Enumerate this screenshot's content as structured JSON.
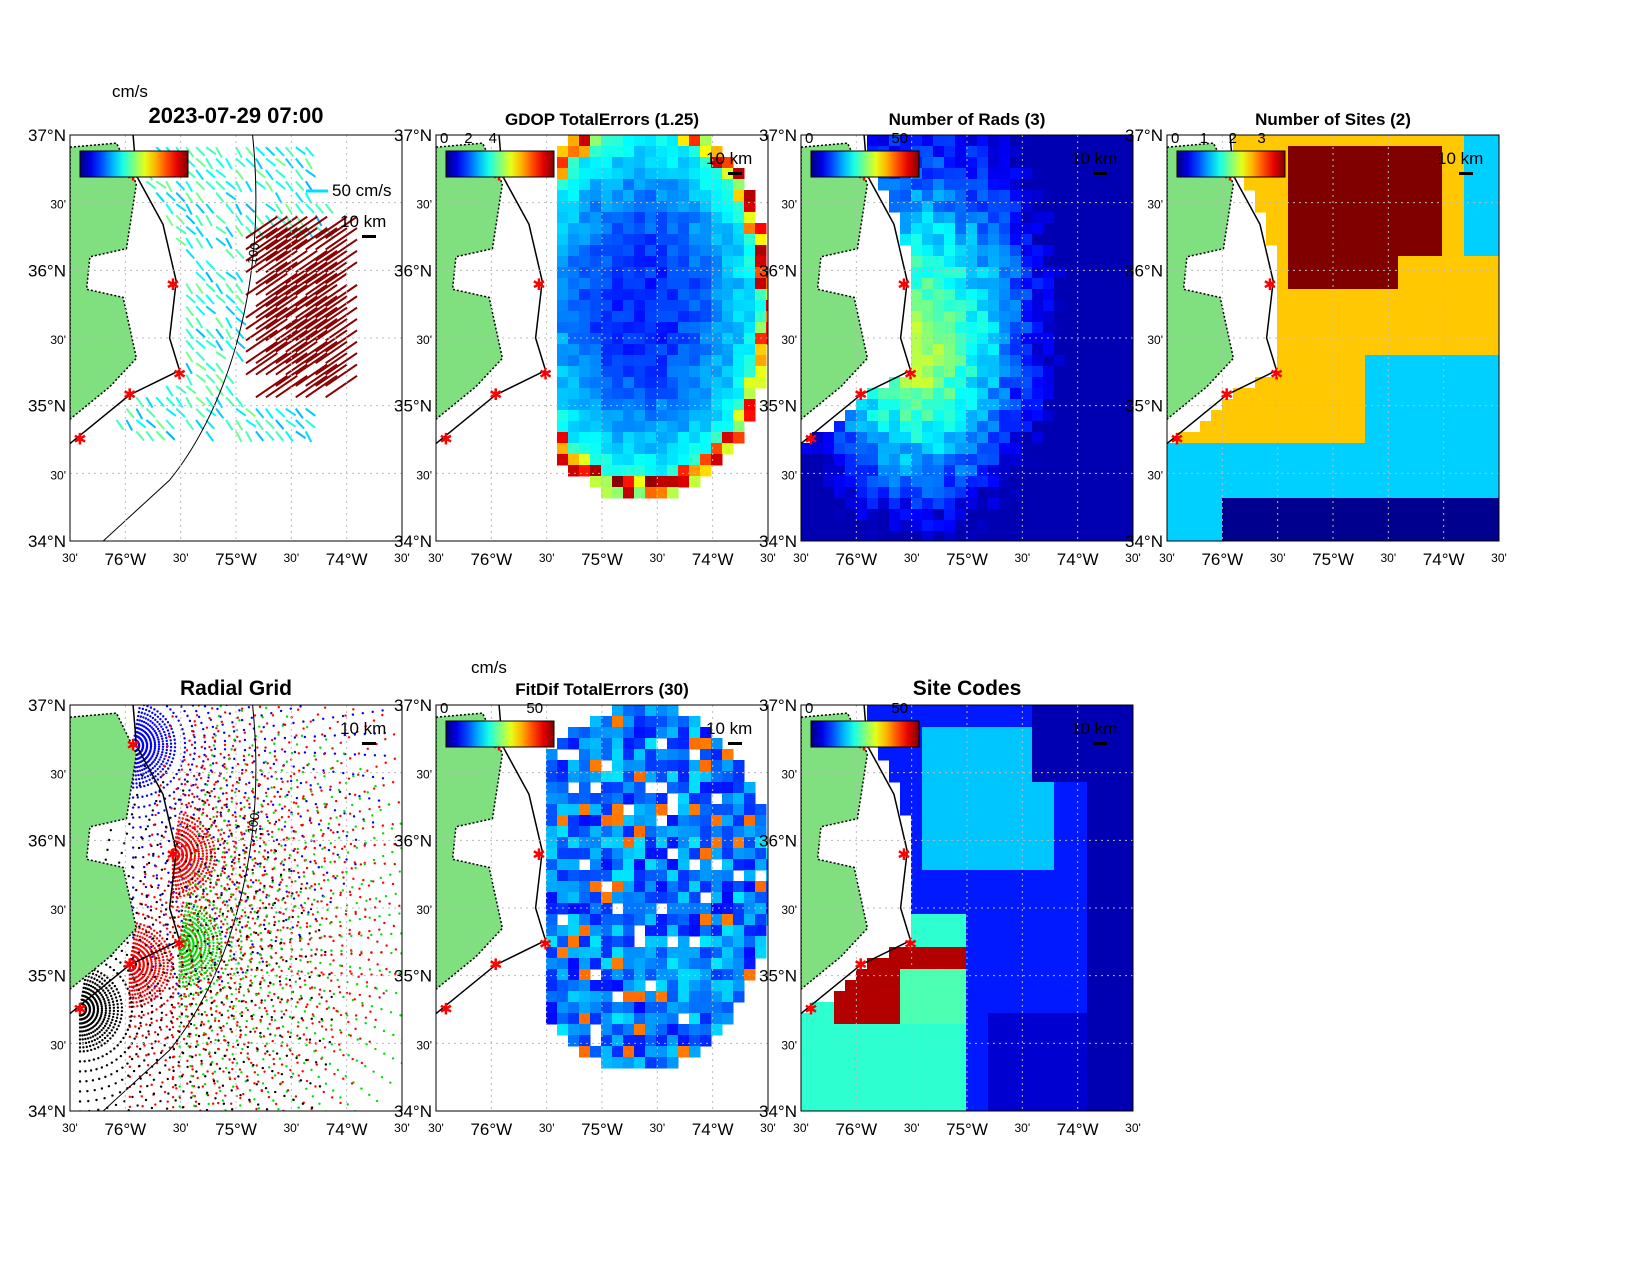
{
  "figure_title": "2023-07-29 07:00",
  "lat_ticks": [
    "37°N",
    "30'",
    "36°N",
    "30'",
    "35°N",
    "30'",
    "34°N"
  ],
  "lon_ticks": [
    "30'",
    "76°W",
    "30'",
    "75°W",
    "30'",
    "74°W",
    "30'"
  ],
  "scale_bar_label": "10 km",
  "colors": {
    "land": "#80e080",
    "coast": "#000000",
    "site_marker": "#ff0000",
    "frame": "#000000"
  },
  "chart_data": [
    {
      "type": "vector",
      "title": "",
      "units": "cm/s",
      "colorbar_ticks": [],
      "reference_vector": "50 cm/s",
      "contour_label": "100"
    },
    {
      "type": "heatmap",
      "title": "GDOP TotalErrors (1.25)",
      "colorbar_units": "",
      "colorbar_ticks": [
        "0",
        "2",
        "4"
      ],
      "contour_level": "1.25",
      "colormap": "jet"
    },
    {
      "type": "heatmap",
      "title": "Number of Rads (3)",
      "colorbar_units": "",
      "colorbar_ticks": [
        "0",
        "50"
      ],
      "contour_level": "3",
      "colormap": "jet"
    },
    {
      "type": "heatmap",
      "title": "Number of Sites (2)",
      "colorbar_units": "",
      "colorbar_ticks": [
        "0",
        "1",
        "2",
        "3"
      ],
      "contour_level": "2",
      "colormap": "jet"
    },
    {
      "type": "scatter",
      "title": "Radial Grid",
      "contour_label": "100",
      "series_colors": [
        "#0000ff",
        "#ff0000",
        "#00dd00",
        "#000000"
      ]
    },
    {
      "type": "heatmap",
      "title": "FitDif TotalErrors (30)",
      "colorbar_units": "cm/s",
      "colorbar_ticks": [
        "0",
        "50"
      ],
      "contour_level": "30",
      "colormap": "jet"
    },
    {
      "type": "heatmap",
      "title": "Site Codes",
      "colorbar_units": "",
      "colorbar_ticks": [
        "0",
        "50"
      ],
      "colormap": "jet"
    }
  ]
}
